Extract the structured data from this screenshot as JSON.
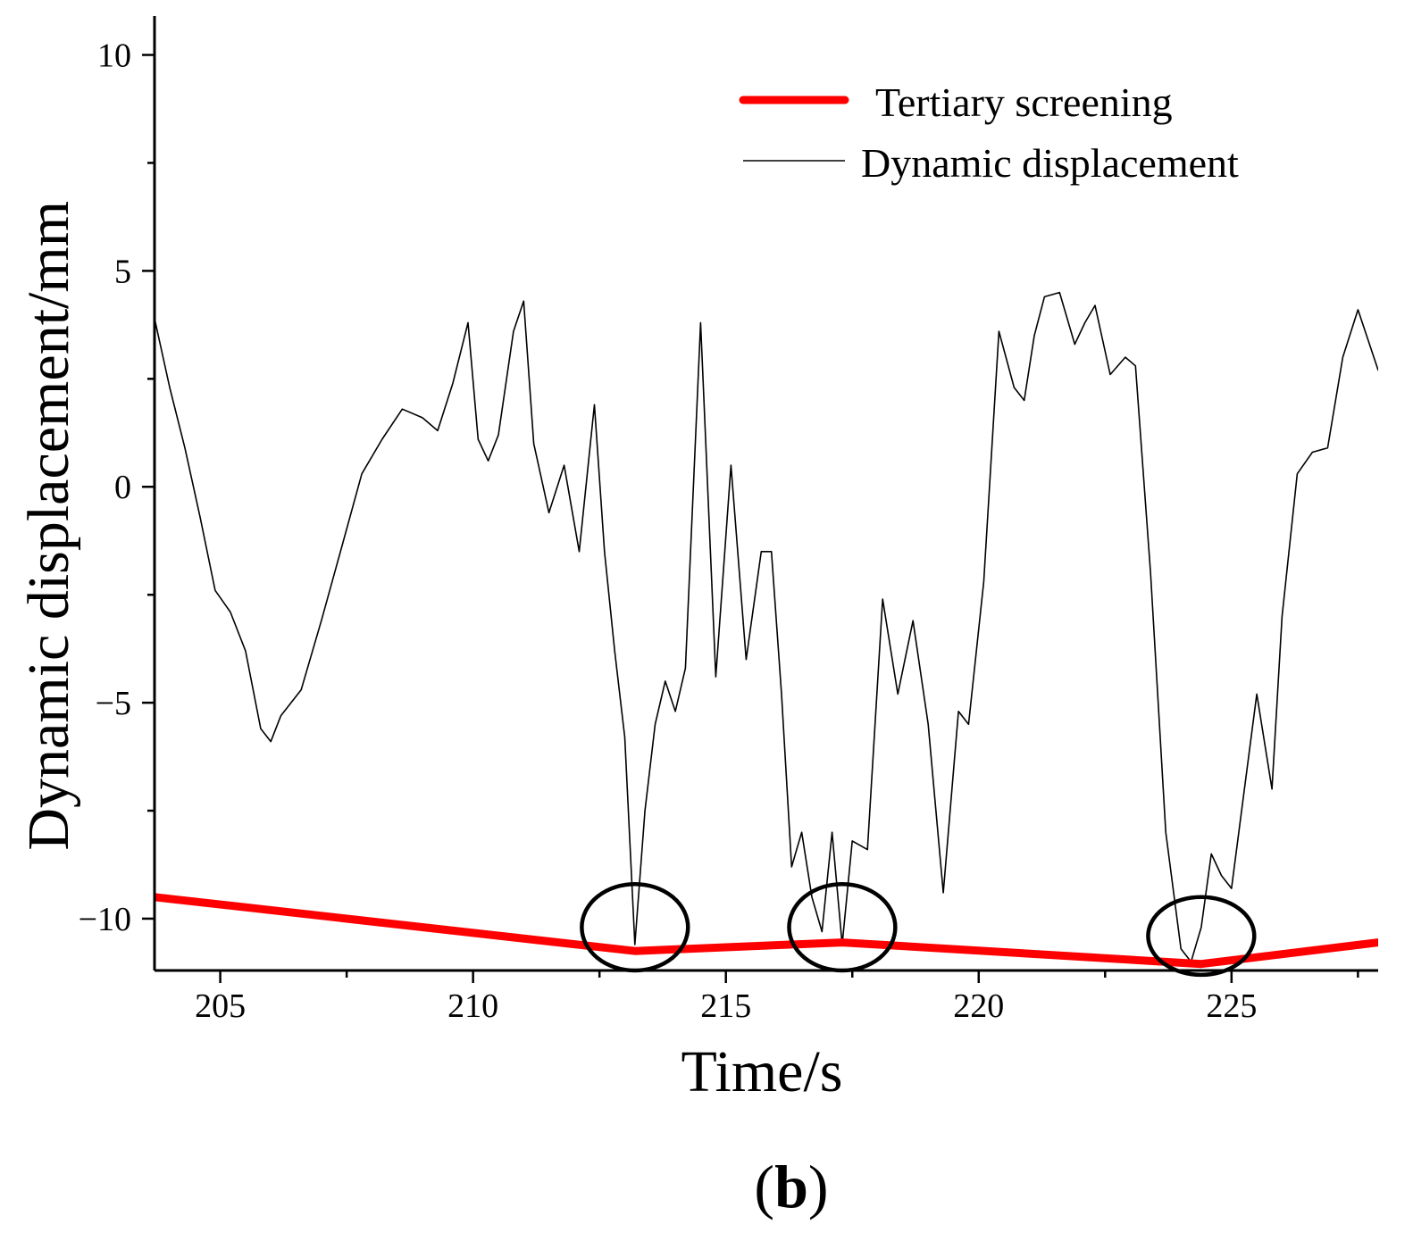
{
  "chart_data": {
    "type": "line",
    "title": "",
    "xlabel": "Time/s",
    "ylabel": "Dynamic displacement/mm",
    "panel_label": "(b)",
    "xlim": [
      203.7,
      227.9
    ],
    "ylim": [
      -11.2,
      10.9
    ],
    "x_ticks": [
      205,
      210,
      215,
      220,
      225
    ],
    "y_ticks": [
      -10,
      -5,
      0,
      5,
      10
    ],
    "x_minor_step": 2.5,
    "y_minor_step": 2.5,
    "grid": false,
    "legend_position": "top-right",
    "series": [
      {
        "name": "Tertiary screening",
        "color": "#ff0000",
        "x": [
          203.7,
          213.2,
          217.3,
          224.4,
          227.9
        ],
        "y": [
          -9.5,
          -10.75,
          -10.55,
          -11.05,
          -10.55
        ]
      },
      {
        "name": "Dynamic displacement",
        "color": "#000000",
        "x": [
          203.7,
          204.0,
          204.3,
          204.6,
          204.9,
          205.2,
          205.5,
          205.8,
          206.0,
          206.2,
          206.6,
          207.0,
          207.4,
          207.8,
          208.2,
          208.6,
          209.0,
          209.3,
          209.6,
          209.9,
          210.1,
          210.3,
          210.5,
          210.8,
          211.0,
          211.2,
          211.5,
          211.8,
          212.1,
          212.4,
          212.6,
          212.8,
          213.0,
          213.2,
          213.4,
          213.6,
          213.8,
          214.0,
          214.2,
          214.5,
          214.8,
          215.1,
          215.4,
          215.7,
          215.9,
          216.1,
          216.3,
          216.5,
          216.7,
          216.9,
          217.1,
          217.3,
          217.5,
          217.8,
          218.1,
          218.4,
          218.7,
          219.0,
          219.3,
          219.6,
          219.8,
          220.1,
          220.4,
          220.7,
          220.9,
          221.1,
          221.3,
          221.6,
          221.9,
          222.1,
          222.3,
          222.6,
          222.9,
          223.1,
          223.4,
          223.7,
          224.0,
          224.2,
          224.4,
          224.6,
          224.8,
          225.0,
          225.2,
          225.5,
          225.8,
          226.0,
          226.3,
          226.6,
          226.9,
          227.2,
          227.5,
          227.9
        ],
        "y": [
          3.9,
          2.3,
          0.9,
          -0.7,
          -2.4,
          -2.9,
          -3.8,
          -5.6,
          -5.9,
          -5.3,
          -4.7,
          -3.1,
          -1.4,
          0.3,
          1.1,
          1.8,
          1.6,
          1.3,
          2.4,
          3.8,
          1.1,
          0.6,
          1.2,
          3.6,
          4.3,
          1.0,
          -0.6,
          0.5,
          -1.5,
          1.9,
          -1.5,
          -3.8,
          -5.8,
          -10.6,
          -7.5,
          -5.5,
          -4.5,
          -5.2,
          -4.2,
          3.8,
          -4.4,
          0.5,
          -4.0,
          -1.5,
          -1.5,
          -4.8,
          -8.8,
          -8.0,
          -9.5,
          -10.3,
          -8.0,
          -10.6,
          -8.2,
          -8.4,
          -2.6,
          -4.8,
          -3.1,
          -5.5,
          -9.4,
          -5.2,
          -5.5,
          -2.2,
          3.6,
          2.3,
          2.0,
          3.5,
          4.4,
          4.5,
          3.3,
          3.8,
          4.2,
          2.6,
          3.0,
          2.8,
          -2.0,
          -8.0,
          -10.7,
          -11.0,
          -10.2,
          -8.5,
          -9.0,
          -9.3,
          -7.5,
          -4.8,
          -7.0,
          -3.0,
          0.3,
          0.8,
          0.9,
          3.0,
          4.1,
          2.7
        ]
      }
    ],
    "annotations": [
      {
        "type": "ellipse",
        "x": 213.2,
        "y": -10.2,
        "rx": 1.05,
        "ry": 1.0
      },
      {
        "type": "ellipse",
        "x": 217.3,
        "y": -10.2,
        "rx": 1.05,
        "ry": 1.0
      },
      {
        "type": "ellipse",
        "x": 224.4,
        "y": -10.4,
        "rx": 1.05,
        "ry": 0.9
      }
    ]
  }
}
